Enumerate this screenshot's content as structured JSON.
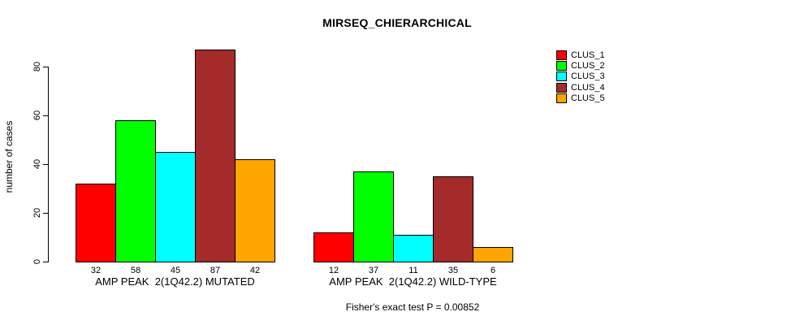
{
  "chart_data": {
    "type": "bar",
    "grouped": true,
    "title": "MIRSEQ_CHIERARCHICAL",
    "ylabel": "number of cases",
    "xlabel": "",
    "categories": [
      "AMP PEAK  2(1Q42.2) MUTATED",
      "AMP PEAK  2(1Q42.2) WILD-TYPE"
    ],
    "series": [
      {
        "name": "CLUS_1",
        "color": "#ff0000",
        "values": [
          32,
          12
        ]
      },
      {
        "name": "CLUS_2",
        "color": "#00ff00",
        "values": [
          58,
          37
        ]
      },
      {
        "name": "CLUS_3",
        "color": "#00ffff",
        "values": [
          45,
          11
        ]
      },
      {
        "name": "CLUS_4",
        "color": "#a52a2a",
        "values": [
          87,
          35
        ]
      },
      {
        "name": "CLUS_5",
        "color": "#ffa500",
        "values": [
          42,
          6
        ]
      }
    ],
    "yticks": [
      0,
      20,
      40,
      60,
      80
    ],
    "ylim": [
      0,
      87
    ],
    "grid": false,
    "legend_position": "right",
    "bar_value_labels_shown": true,
    "annotation": "Fisher's exact test P = 0.00852"
  }
}
